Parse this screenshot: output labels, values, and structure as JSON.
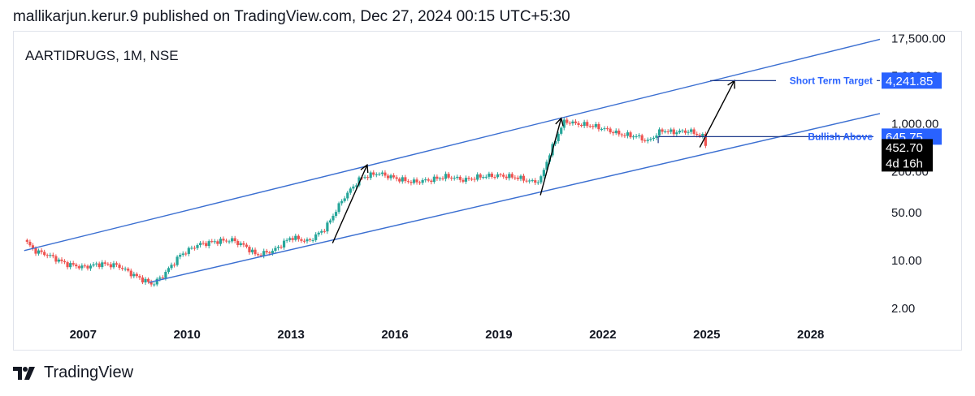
{
  "header": {
    "text": "mallikarjun.kerur.9 published on TradingView.com, Dec 27, 2024 00:15 UTC+5:30"
  },
  "footer": {
    "brand": "TradingView",
    "logo_icon": "tradingview-logo"
  },
  "chart_data": {
    "type": "candlestick",
    "symbol_label": "AARTIDRUGS, 1M, NSE",
    "y_scale": "log",
    "ylim": [
      0.5,
      22000
    ],
    "xlim": [
      2005.0,
      2030.0
    ],
    "y_ticks": [
      "2.00",
      "10.00",
      "50.00",
      "200.00",
      "1,000.00",
      "5,000.00",
      "17,500.00"
    ],
    "x_ticks": [
      "2007",
      "2010",
      "2013",
      "2016",
      "2019",
      "2022",
      "2025",
      "2028"
    ],
    "colors": {
      "up": "#26a69a",
      "down": "#ef5350",
      "channel": "#3b6fd1",
      "arrow": "#000000",
      "label_bg": "#2962ff",
      "current_bg": "#000000"
    },
    "channel_lines": {
      "upper": [
        {
          "x": 2005.3,
          "y": 14
        },
        {
          "x": 2030.0,
          "y": 17000
        }
      ],
      "lower": [
        {
          "x": 2008.9,
          "y": 4.8
        },
        {
          "x": 2030.0,
          "y": 1400
        }
      ]
    },
    "arrows": [
      {
        "from": {
          "x": 2014.2,
          "y": 18
        },
        "to": {
          "x": 2015.2,
          "y": 250
        }
      },
      {
        "from": {
          "x": 2020.2,
          "y": 90
        },
        "to": {
          "x": 2020.8,
          "y": 1200
        }
      },
      {
        "from": {
          "x": 2024.8,
          "y": 450
        },
        "to": {
          "x": 2025.8,
          "y": 4241.85
        }
      }
    ],
    "price_path": [
      [
        2005.3,
        20
      ],
      [
        2005.6,
        14
      ],
      [
        2006.0,
        12
      ],
      [
        2006.5,
        9
      ],
      [
        2007.0,
        8
      ],
      [
        2007.5,
        9
      ],
      [
        2008.0,
        8.5
      ],
      [
        2008.5,
        6
      ],
      [
        2009.0,
        4.5
      ],
      [
        2009.3,
        6
      ],
      [
        2009.8,
        12
      ],
      [
        2010.3,
        17
      ],
      [
        2010.8,
        19
      ],
      [
        2011.3,
        20
      ],
      [
        2011.7,
        16
      ],
      [
        2012.0,
        12
      ],
      [
        2012.5,
        14
      ],
      [
        2013.0,
        22
      ],
      [
        2013.5,
        19
      ],
      [
        2014.0,
        30
      ],
      [
        2014.5,
        80
      ],
      [
        2015.0,
        160
      ],
      [
        2015.5,
        190
      ],
      [
        2016.0,
        160
      ],
      [
        2016.5,
        140
      ],
      [
        2017.0,
        150
      ],
      [
        2017.5,
        170
      ],
      [
        2018.0,
        150
      ],
      [
        2018.5,
        170
      ],
      [
        2019.0,
        175
      ],
      [
        2019.5,
        165
      ],
      [
        2020.0,
        140
      ],
      [
        2020.2,
        150
      ],
      [
        2020.4,
        300
      ],
      [
        2020.7,
        700
      ],
      [
        2020.9,
        1100
      ],
      [
        2021.2,
        1000
      ],
      [
        2021.6,
        950
      ],
      [
        2022.0,
        850
      ],
      [
        2022.5,
        700
      ],
      [
        2023.0,
        650
      ],
      [
        2023.3,
        550
      ],
      [
        2023.7,
        800
      ],
      [
        2024.0,
        750
      ],
      [
        2024.5,
        780
      ],
      [
        2024.9,
        640
      ],
      [
        2025.0,
        452.7
      ]
    ],
    "horizontal_levels": [
      {
        "label": "Bullish Above",
        "value": 645.75,
        "x_start": 2023.6,
        "value_label": "645.75"
      },
      {
        "label": "Short Term Target",
        "value": 4241.85,
        "x_start": 2025.1,
        "value_label": "4,241.85"
      }
    ],
    "current_price": {
      "value": 452.7,
      "label": "452.70",
      "countdown": "4d 16h"
    }
  }
}
